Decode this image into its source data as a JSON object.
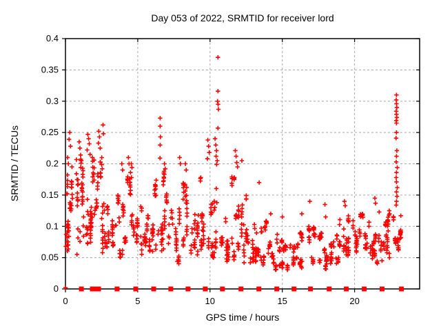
{
  "title": "Day 053 of 2022, SRMTID for receiver lord",
  "x_axis": {
    "label": "GPS time / hours",
    "range": [
      0,
      24.5
    ],
    "ticks": [
      {
        "v": 0,
        "label": "0"
      },
      {
        "v": 5,
        "label": "5"
      },
      {
        "v": 10,
        "label": "10"
      },
      {
        "v": 15,
        "label": "15"
      },
      {
        "v": 20,
        "label": "20"
      }
    ]
  },
  "y_axis": {
    "label": "SRMTID / TECUs",
    "range": [
      0,
      0.4
    ],
    "ticks": [
      {
        "v": 0,
        "label": "0"
      },
      {
        "v": 0.05,
        "label": "0.05"
      },
      {
        "v": 0.1,
        "label": "0.1"
      },
      {
        "v": 0.15,
        "label": "0.15"
      },
      {
        "v": 0.2,
        "label": "0.2"
      },
      {
        "v": 0.25,
        "label": "0.25"
      },
      {
        "v": 0.3,
        "label": "0.3"
      },
      {
        "v": 0.35,
        "label": "0.35"
      },
      {
        "v": 0.4,
        "label": "0.4"
      }
    ]
  },
  "colors": {
    "marker": "#ff0000",
    "grid": "#a8a8a8",
    "border": "#000000",
    "text": "#000000",
    "background": "#ffffff"
  },
  "chart_data": {
    "type": "scatter",
    "title": "Day 053 of 2022, SRMTID for receiver lord",
    "xlabel": "GPS time / hours",
    "ylabel": "SRMTID / TECUs",
    "xlim": [
      0,
      24.5
    ],
    "ylim": [
      0,
      0.4
    ],
    "xticks": [
      0,
      5,
      10,
      15,
      20
    ],
    "yticks": [
      0,
      0.05,
      0.1,
      0.15,
      0.2,
      0.25,
      0.3,
      0.35,
      0.4
    ],
    "grid": true,
    "legend": "none",
    "marker": "plus",
    "seed": 1337,
    "density_bands": [
      [
        0.0,
        0.7,
        0.05,
        0.19,
        40
      ],
      [
        0.7,
        1.3,
        0.05,
        0.21,
        38
      ],
      [
        1.3,
        2.0,
        0.05,
        0.23,
        40
      ],
      [
        2.0,
        2.7,
        0.05,
        0.21,
        36
      ],
      [
        2.7,
        3.3,
        0.05,
        0.17,
        26
      ],
      [
        3.3,
        4.0,
        0.05,
        0.15,
        26
      ],
      [
        4.0,
        4.7,
        0.06,
        0.18,
        30
      ],
      [
        4.7,
        5.3,
        0.05,
        0.14,
        26
      ],
      [
        5.3,
        6.0,
        0.04,
        0.13,
        26
      ],
      [
        6.0,
        6.7,
        0.06,
        0.19,
        30
      ],
      [
        6.7,
        7.3,
        0.06,
        0.19,
        30
      ],
      [
        7.3,
        8.0,
        0.04,
        0.16,
        28
      ],
      [
        8.0,
        8.7,
        0.05,
        0.17,
        28
      ],
      [
        8.7,
        9.3,
        0.05,
        0.15,
        26
      ],
      [
        9.3,
        10.0,
        0.05,
        0.18,
        30
      ],
      [
        10.0,
        10.7,
        0.05,
        0.19,
        28
      ],
      [
        10.7,
        11.3,
        0.04,
        0.15,
        28
      ],
      [
        11.3,
        12.0,
        0.04,
        0.18,
        30
      ],
      [
        12.0,
        12.7,
        0.04,
        0.15,
        28
      ],
      [
        12.7,
        13.3,
        0.04,
        0.12,
        26
      ],
      [
        13.3,
        14.0,
        0.03,
        0.11,
        26
      ],
      [
        14.0,
        14.7,
        0.03,
        0.1,
        26
      ],
      [
        14.7,
        15.3,
        0.03,
        0.09,
        26
      ],
      [
        15.3,
        16.0,
        0.03,
        0.08,
        24
      ],
      [
        16.0,
        16.7,
        0.03,
        0.09,
        26
      ],
      [
        16.7,
        17.3,
        0.04,
        0.1,
        26
      ],
      [
        17.3,
        18.0,
        0.03,
        0.09,
        26
      ],
      [
        18.0,
        18.7,
        0.04,
        0.1,
        26
      ],
      [
        18.7,
        19.3,
        0.04,
        0.12,
        26
      ],
      [
        19.3,
        20.0,
        0.05,
        0.12,
        26
      ],
      [
        20.0,
        20.7,
        0.05,
        0.12,
        26
      ],
      [
        20.7,
        21.3,
        0.04,
        0.11,
        26
      ],
      [
        21.3,
        22.0,
        0.04,
        0.11,
        26
      ],
      [
        22.0,
        22.6,
        0.04,
        0.12,
        28
      ],
      [
        22.6,
        23.1,
        0.06,
        0.13,
        18
      ],
      [
        23.0,
        23.35,
        0.08,
        0.17,
        10
      ]
    ],
    "feature_points": [
      [
        0,
        0.002
      ],
      [
        0.3,
        0.25
      ],
      [
        0.25,
        0.239
      ],
      [
        0.35,
        0.228
      ],
      [
        0.15,
        0.21
      ],
      [
        0.2,
        0.2
      ],
      [
        0.45,
        0.195
      ],
      [
        0.95,
        0.235
      ],
      [
        1.0,
        0.225
      ],
      [
        1.05,
        0.214
      ],
      [
        1.1,
        0.205
      ],
      [
        1.55,
        0.247
      ],
      [
        1.6,
        0.24
      ],
      [
        1.65,
        0.232
      ],
      [
        1.5,
        0.222
      ],
      [
        1.7,
        0.215
      ],
      [
        2.3,
        0.252
      ],
      [
        2.35,
        0.243
      ],
      [
        2.28,
        0.233
      ],
      [
        2.4,
        0.225
      ],
      [
        2.6,
        0.262
      ],
      [
        2.62,
        0.248
      ],
      [
        3.9,
        0.2
      ],
      [
        3.95,
        0.19
      ],
      [
        4.35,
        0.21
      ],
      [
        4.4,
        0.2
      ],
      [
        4.55,
        0.2
      ],
      [
        4.6,
        0.194
      ],
      [
        4.5,
        0.186
      ],
      [
        4.57,
        0.178
      ],
      [
        6.55,
        0.273
      ],
      [
        6.55,
        0.26
      ],
      [
        6.57,
        0.243
      ],
      [
        6.55,
        0.23
      ],
      [
        6.54,
        0.209
      ],
      [
        6.85,
        0.2
      ],
      [
        6.9,
        0.192
      ],
      [
        7.9,
        0.21
      ],
      [
        7.95,
        0.2
      ],
      [
        8.3,
        0.2
      ],
      [
        8.35,
        0.19
      ],
      [
        9.85,
        0.238
      ],
      [
        9.9,
        0.228
      ],
      [
        9.95,
        0.218
      ],
      [
        9.82,
        0.208
      ],
      [
        10.35,
        0.24
      ],
      [
        10.4,
        0.23
      ],
      [
        10.45,
        0.221
      ],
      [
        10.42,
        0.212
      ],
      [
        10.5,
        0.205
      ],
      [
        10.46,
        0.199
      ],
      [
        10.55,
        0.37
      ],
      [
        10.55,
        0.316
      ],
      [
        10.52,
        0.3
      ],
      [
        10.56,
        0.295
      ],
      [
        10.58,
        0.287
      ],
      [
        10.55,
        0.257
      ],
      [
        11.75,
        0.221
      ],
      [
        11.8,
        0.212
      ],
      [
        11.85,
        0.202
      ],
      [
        11.9,
        0.195
      ],
      [
        12.2,
        0.205
      ],
      [
        13.4,
        0.17
      ],
      [
        14.2,
        0.12
      ],
      [
        15.0,
        0.115
      ],
      [
        16.35,
        0.12
      ],
      [
        16.9,
        0.14
      ],
      [
        17.95,
        0.135
      ],
      [
        18.0,
        0.115
      ],
      [
        19.3,
        0.14
      ],
      [
        19.35,
        0.133
      ],
      [
        21.4,
        0.145
      ],
      [
        21.45,
        0.137
      ],
      [
        21.7,
        0.123
      ],
      [
        22.38,
        0.118
      ],
      [
        22.4,
        0.125
      ],
      [
        22.42,
        0.12
      ],
      [
        22.9,
        0.31
      ],
      [
        22.88,
        0.302
      ],
      [
        22.9,
        0.296
      ],
      [
        22.92,
        0.29
      ],
      [
        22.88,
        0.284
      ],
      [
        22.9,
        0.279
      ],
      [
        22.92,
        0.274
      ],
      [
        22.88,
        0.269
      ],
      [
        22.9,
        0.265
      ],
      [
        22.9,
        0.25
      ],
      [
        22.87,
        0.241
      ],
      [
        22.92,
        0.221
      ],
      [
        22.9,
        0.212
      ],
      [
        22.88,
        0.203
      ],
      [
        22.95,
        0.194
      ],
      [
        22.9,
        0.186
      ],
      [
        22.88,
        0.178
      ],
      [
        22.9,
        0.171
      ],
      [
        22.95,
        0.162
      ],
      [
        22.9,
        0.155
      ],
      [
        22.93,
        0.148
      ],
      [
        22.9,
        0.14
      ],
      [
        22.88,
        0.134
      ],
      [
        23.2,
        0.117
      ]
    ],
    "baseline_squares_x": [
      1.1,
      1.86,
      2.0,
      2.29,
      3.57,
      4.86,
      6.1,
      7.29,
      8.48,
      9.67,
      10.86,
      12.14,
      13.38,
      14.62,
      15.81,
      16.95,
      18.24,
      19.43,
      20.67,
      21.9,
      23.24
    ]
  }
}
